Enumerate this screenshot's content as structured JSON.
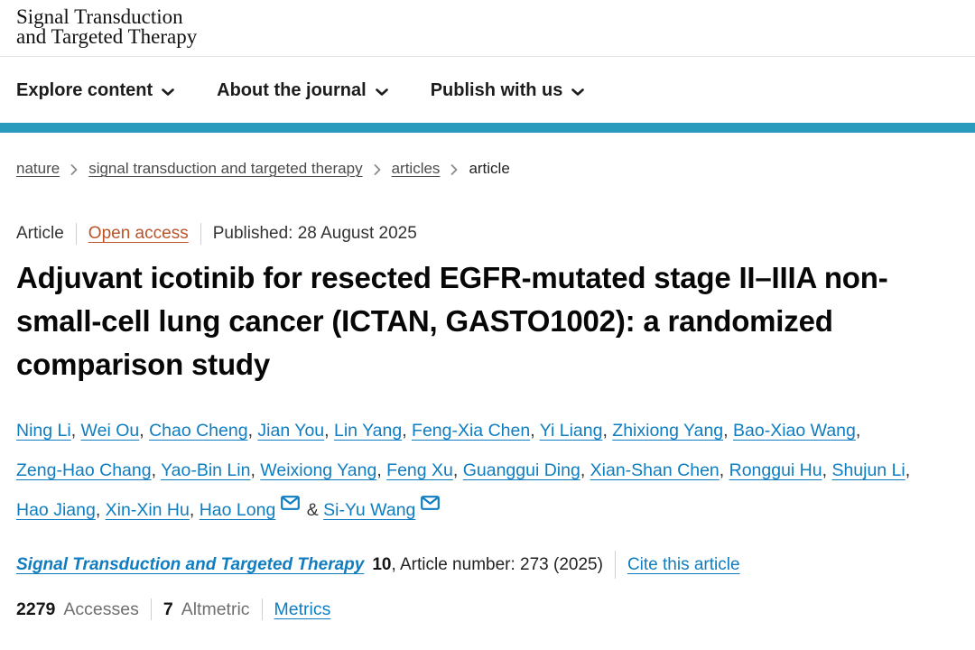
{
  "header": {
    "logo_line1": "Signal Transduction",
    "logo_line2": "and Targeted Therapy",
    "nav_items": [
      {
        "label": "Explore content"
      },
      {
        "label": "About the journal"
      },
      {
        "label": "Publish with us"
      }
    ],
    "accent_color": "#2a9bbd"
  },
  "icons": {
    "chevron-down-icon": "v",
    "chevron-right-icon": ">",
    "email-icon": "envelope"
  },
  "colors": {
    "link_blue": "#0f7dc0",
    "open_access_orange": "#bc5327",
    "accent_teal": "#2a9bbd"
  },
  "breadcrumb": {
    "items": [
      {
        "label": "nature",
        "current": false
      },
      {
        "label": "signal transduction and targeted therapy",
        "current": false
      },
      {
        "label": "articles",
        "current": false
      },
      {
        "label": "article",
        "current": true
      }
    ]
  },
  "article": {
    "type_label": "Article",
    "open_access_label": "Open access",
    "published": "Published: 28 August 2025",
    "title": "Adjuvant icotinib for resected EGFR-mutated stage II–IIIA non-small-cell lung cancer (ICTAN, GASTO1002): a randomized comparison study",
    "authors": [
      {
        "name": "Ning Li",
        "email": false
      },
      {
        "name": "Wei Ou",
        "email": false
      },
      {
        "name": "Chao Cheng",
        "email": false
      },
      {
        "name": "Jian You",
        "email": false
      },
      {
        "name": "Lin Yang",
        "email": false
      },
      {
        "name": "Feng-Xia Chen",
        "email": false
      },
      {
        "name": "Yi Liang",
        "email": false
      },
      {
        "name": "Zhixiong Yang",
        "email": false
      },
      {
        "name": "Bao-Xiao Wang",
        "email": false
      },
      {
        "name": "Zeng-Hao Chang",
        "email": false
      },
      {
        "name": "Yao-Bin Lin",
        "email": false
      },
      {
        "name": "Weixiong Yang",
        "email": false
      },
      {
        "name": "Feng Xu",
        "email": false
      },
      {
        "name": "Guanggui Ding",
        "email": false
      },
      {
        "name": "Xian-Shan Chen",
        "email": false
      },
      {
        "name": "Ronggui Hu",
        "email": false
      },
      {
        "name": "Shujun Li",
        "email": false
      },
      {
        "name": "Hao Jiang",
        "email": false
      },
      {
        "name": "Xin-Xin Hu",
        "email": false
      },
      {
        "name": "Hao Long",
        "email": true
      },
      {
        "name": "Si-Yu Wang",
        "email": true
      }
    ],
    "author_separator": ", ",
    "author_last_separator": " & "
  },
  "citation": {
    "journal": "Signal Transduction and Targeted Therapy",
    "volume": "10",
    "article_info": ", Article number: 273 (2025)",
    "cite_label": "Cite this article"
  },
  "metrics": {
    "accesses_value": "2279",
    "accesses_label": "Accesses",
    "altmetric_value": "7",
    "altmetric_label": "Altmetric",
    "metrics_label": "Metrics"
  }
}
